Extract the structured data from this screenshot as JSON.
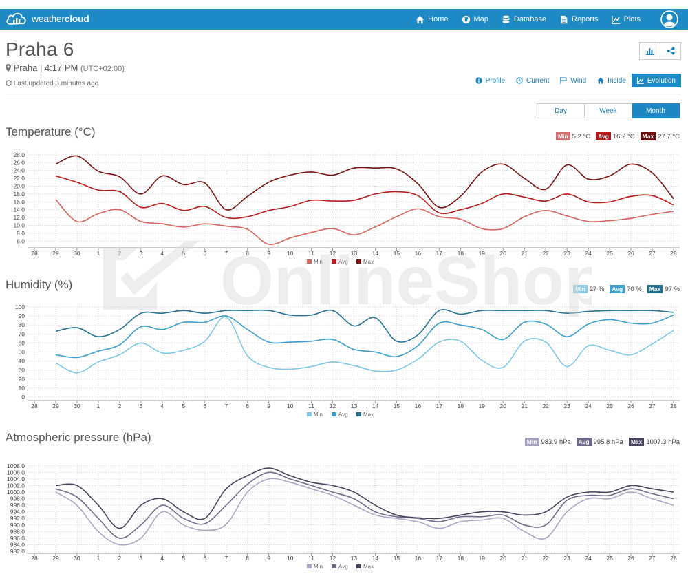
{
  "nav": {
    "brand_light": "weather",
    "brand_bold": "cloud",
    "items": [
      {
        "label": "Home",
        "icon": "home-icon"
      },
      {
        "label": "Map",
        "icon": "globe-icon"
      },
      {
        "label": "Database",
        "icon": "database-icon"
      },
      {
        "label": "Reports",
        "icon": "document-icon"
      },
      {
        "label": "Plots",
        "icon": "line-chart-icon"
      }
    ],
    "account_icon": "user-avatar-icon"
  },
  "station": {
    "name": "Praha 6",
    "city": "Praha",
    "time": "4:17 PM",
    "tz": "(UTC+02:00)",
    "updated": "Last updated 3 minutes ago"
  },
  "tabs": [
    {
      "label": "Profile",
      "icon": "info-icon",
      "active": false
    },
    {
      "label": "Current",
      "icon": "clock-icon",
      "active": false
    },
    {
      "label": "Wind",
      "icon": "flag-icon",
      "active": false
    },
    {
      "label": "Inside",
      "icon": "home-icon",
      "active": false
    },
    {
      "label": "Evolution",
      "icon": "line-chart-icon",
      "active": true
    }
  ],
  "periods": [
    {
      "label": "Day",
      "active": false
    },
    {
      "label": "Week",
      "active": false
    },
    {
      "label": "Month",
      "active": true
    }
  ],
  "watermark": {
    "text": "OnlineShop"
  },
  "sections": {
    "temperature": {
      "title": "Temperature (°C)",
      "summary": [
        {
          "label": "Min",
          "value": "5.2 °C",
          "color": "#d27070"
        },
        {
          "label": "Avg",
          "value": "16.2 °C",
          "color": "#b21e1e"
        },
        {
          "label": "Max",
          "value": "27.7 °C",
          "color": "#6e0d0d"
        }
      ]
    },
    "humidity": {
      "title": "Humidity (%)",
      "summary": [
        {
          "label": "Min",
          "value": "27 %",
          "color": "#8dcae6"
        },
        {
          "label": "Avg",
          "value": "70 %",
          "color": "#3fa1cc"
        },
        {
          "label": "Max",
          "value": "97 %",
          "color": "#24718f"
        }
      ]
    },
    "pressure": {
      "title": "Atmospheric pressure (hPa)",
      "summary": [
        {
          "label": "Min",
          "value": "983.9 hPa",
          "color": "#a3a1bf"
        },
        {
          "label": "Avg",
          "value": "995.8 hPa",
          "color": "#6b6787"
        },
        {
          "label": "Max",
          "value": "1007.3 hPa",
          "color": "#45415f"
        }
      ]
    }
  },
  "chart_data": [
    {
      "type": "line",
      "id": "temperature",
      "x": [
        "28",
        "29",
        "30",
        "1",
        "2",
        "3",
        "4",
        "5",
        "6",
        "7",
        "8",
        "9",
        "10",
        "11",
        "12",
        "13",
        "14",
        "15",
        "16",
        "17",
        "18",
        "19",
        "20",
        "21",
        "22",
        "23",
        "24",
        "25",
        "26",
        "27",
        "28"
      ],
      "yticks": [
        "6.0",
        "8.0",
        "10.0",
        "12.0",
        "14.0",
        "16.0",
        "18.0",
        "20.0",
        "22.0",
        "24.0",
        "26.0",
        "28.0"
      ],
      "ylim": [
        5,
        28.5
      ],
      "series": [
        {
          "name": "Min",
          "color": "#d9625e",
          "values": [
            null,
            16.6,
            11.0,
            13.0,
            14.0,
            11.0,
            10.4,
            9.6,
            10.4,
            9.8,
            9.0,
            5.2,
            6.8,
            8.2,
            9.2,
            7.6,
            9.6,
            12.2,
            14.2,
            12.2,
            11.6,
            9.2,
            9.2,
            12.2,
            13.8,
            12.4,
            11.0,
            11.2,
            11.8,
            12.8,
            13.6
          ]
        },
        {
          "name": "Avg",
          "color": "#b71c1c",
          "values": [
            null,
            22.6,
            21.0,
            19.0,
            18.6,
            14.6,
            15.6,
            13.8,
            14.8,
            12.0,
            12.2,
            13.8,
            14.8,
            16.4,
            16.2,
            16.4,
            18.0,
            18.6,
            17.6,
            13.2,
            14.0,
            15.6,
            18.0,
            17.2,
            16.2,
            18.0,
            16.0,
            16.0,
            17.4,
            17.6,
            15.2
          ]
        },
        {
          "name": "Max",
          "color": "#7a0f0f",
          "values": [
            null,
            25.6,
            27.7,
            23.8,
            22.4,
            18.0,
            22.6,
            20.4,
            20.8,
            14.0,
            17.4,
            21.0,
            22.8,
            23.6,
            22.8,
            24.6,
            24.6,
            24.4,
            20.6,
            14.6,
            17.4,
            23.6,
            25.6,
            22.0,
            19.2,
            25.4,
            21.8,
            22.6,
            25.6,
            23.4,
            16.8
          ]
        }
      ],
      "legend": [
        "Min",
        "Avg",
        "Max"
      ]
    },
    {
      "type": "line",
      "id": "humidity",
      "x": [
        "28",
        "29",
        "30",
        "1",
        "2",
        "3",
        "4",
        "5",
        "6",
        "7",
        "8",
        "9",
        "10",
        "11",
        "12",
        "13",
        "14",
        "15",
        "16",
        "17",
        "18",
        "19",
        "20",
        "21",
        "22",
        "23",
        "24",
        "25",
        "26",
        "27",
        "28"
      ],
      "yticks": [
        "0",
        "10",
        "20",
        "30",
        "40",
        "50",
        "60",
        "70",
        "80",
        "90",
        "100"
      ],
      "ylim": [
        0,
        100
      ],
      "series": [
        {
          "name": "Min",
          "color": "#7cc8e6",
          "values": [
            null,
            38,
            27,
            39,
            47,
            60,
            49,
            52,
            62,
            89,
            46,
            33,
            31,
            34,
            39,
            35,
            29,
            30,
            42,
            61,
            62,
            41,
            33,
            62,
            61,
            34,
            57,
            52,
            47,
            59,
            74
          ]
        },
        {
          "name": "Avg",
          "color": "#3a9fd0",
          "values": [
            null,
            47,
            44,
            51,
            58,
            78,
            75,
            83,
            83,
            90,
            75,
            61,
            61,
            62,
            64,
            53,
            50,
            45,
            57,
            82,
            80,
            75,
            64,
            83,
            81,
            67,
            81,
            86,
            82,
            82,
            91
          ]
        },
        {
          "name": "Max",
          "color": "#23718f",
          "values": [
            null,
            73,
            77,
            67,
            75,
            93,
            93,
            96,
            93,
            96,
            96,
            96,
            91,
            91,
            96,
            79,
            88,
            62,
            69,
            96,
            92,
            96,
            96,
            96,
            96,
            93,
            95,
            96,
            96,
            96,
            94
          ]
        }
      ],
      "legend": [
        "Min",
        "Avg",
        "Max"
      ]
    },
    {
      "type": "line",
      "id": "pressure",
      "x": [
        "28",
        "29",
        "30",
        "1",
        "2",
        "3",
        "4",
        "5",
        "6",
        "7",
        "8",
        "9",
        "10",
        "11",
        "12",
        "13",
        "14",
        "15",
        "16",
        "17",
        "18",
        "19",
        "20",
        "21",
        "22",
        "23",
        "24",
        "25",
        "26",
        "27",
        "28"
      ],
      "yticks": [
        "982.0",
        "984.0",
        "986.0",
        "988.0",
        "990.0",
        "992.0",
        "994.0",
        "996.0",
        "998.0",
        "1000.0",
        "1002.0",
        "1004.0",
        "1006.0",
        "1008.0"
      ],
      "ylim": [
        982,
        1009
      ],
      "series": [
        {
          "name": "Min",
          "color": "#a9a7c3",
          "values": [
            null,
            1000.0,
            996.0,
            988.0,
            984.0,
            986.0,
            994.0,
            990.0,
            988.4,
            990.2,
            1000.0,
            1004.0,
            1003.0,
            1001.0,
            999.0,
            996.0,
            993.0,
            992.0,
            991.0,
            989.0,
            991.0,
            991.5,
            992.0,
            988.0,
            986.0,
            994.0,
            998.0,
            998.0,
            1000.0,
            998.0,
            996.0
          ]
        },
        {
          "name": "Avg",
          "color": "#6d6989",
          "values": [
            null,
            1001.0,
            998.5,
            992.0,
            986.0,
            990.0,
            996.0,
            992.0,
            990.4,
            996.0,
            1002.4,
            1006.0,
            1004.0,
            1002.0,
            1000.0,
            998.0,
            994.0,
            992.5,
            992.0,
            991.0,
            992.5,
            992.5,
            993.0,
            990.0,
            990.0,
            997.5,
            999.0,
            999.0,
            1001.0,
            999.5,
            998.0
          ]
        },
        {
          "name": "Max",
          "color": "#46425e",
          "values": [
            null,
            1002.0,
            1002.0,
            996.0,
            989.0,
            996.0,
            998.0,
            994.0,
            992.0,
            1001.0,
            1005.0,
            1007.3,
            1005.0,
            1003.0,
            1002.0,
            1000.0,
            996.0,
            993.0,
            992.2,
            992.0,
            993.0,
            994.0,
            994.0,
            993.0,
            994.0,
            998.5,
            1000.0,
            1000.0,
            1002.0,
            1001.0,
            1000.0
          ]
        }
      ],
      "legend": [
        "Min",
        "Avg",
        "Max"
      ]
    }
  ]
}
